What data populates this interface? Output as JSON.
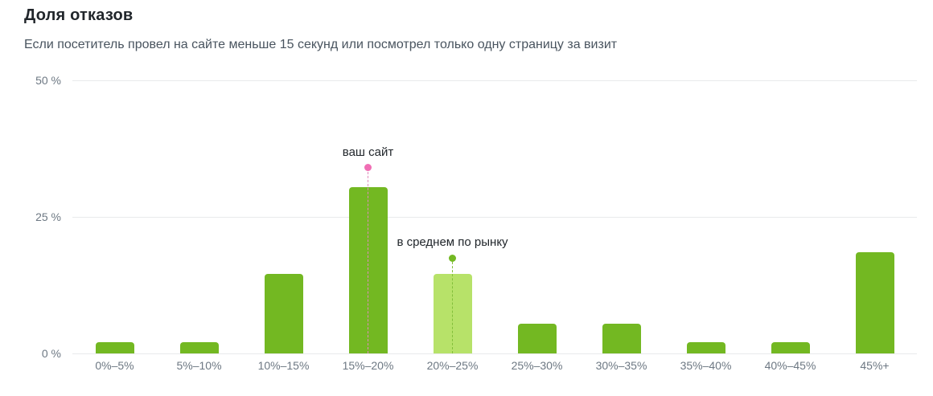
{
  "chart_data": {
    "type": "bar",
    "title": "Доля отказов",
    "subtitle": "Если посетитель провел на сайте меньше 15 секунд или посмотрел только одну страницу за визит",
    "categories": [
      "0%–5%",
      "5%–10%",
      "10%–15%",
      "15%–20%",
      "20%–25%",
      "25%–30%",
      "30%–35%",
      "35%–40%",
      "40%–45%",
      "45%+"
    ],
    "values": [
      2,
      2,
      14.5,
      30.5,
      14.5,
      5.5,
      5.5,
      2,
      2,
      18.5
    ],
    "highlight_index": 4,
    "xlabel": "",
    "ylabel": "",
    "ylim": [
      0,
      50
    ],
    "grid": true,
    "legend": "none",
    "yticks": [
      {
        "value": 50,
        "label": "50 %"
      },
      {
        "value": 25,
        "label": "25 %"
      },
      {
        "value": 0,
        "label": "0 %"
      }
    ],
    "markers": [
      {
        "label": "ваш сайт",
        "category_index": 3,
        "value": 34,
        "dot_color": "#f06eb4",
        "line_color": "#e08cbb"
      },
      {
        "label": "в среднем по рынку",
        "category_index": 4,
        "value": 17.5,
        "dot_color": "#73b822",
        "line_color": "#82bf3a"
      }
    ],
    "colors": {
      "bar": "#73b822",
      "bar_highlight": "#b7e269",
      "gridline": "#e8eaec"
    }
  }
}
